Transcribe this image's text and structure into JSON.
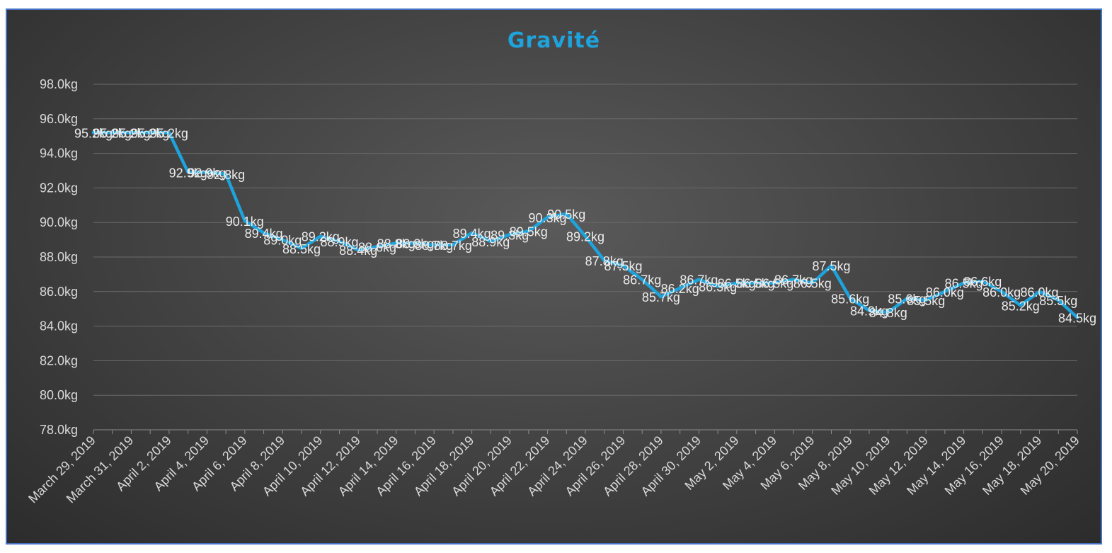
{
  "chart_data": {
    "type": "line",
    "title": "Gravité",
    "xlabel": "",
    "ylabel": "",
    "ylim": [
      78,
      98
    ],
    "y_step": 2,
    "y_tick_suffix": "kg",
    "grid": true,
    "legend": "none",
    "colors": {
      "line": "#1fa3dc",
      "title": "#1fa3dc",
      "grid": "#6a6a6a",
      "frame": "#4472c4"
    },
    "x_tick_labels": [
      "March 29, 2019",
      "March 31, 2019",
      "April 2, 2019",
      "April 4, 2019",
      "April 6, 2019",
      "April 8, 2019",
      "April 10, 2019",
      "April 12, 2019",
      "April 14, 2019",
      "April 16, 2019",
      "April 18, 2019",
      "April 20, 2019",
      "April 22, 2019",
      "April 24, 2019",
      "April 26, 2019",
      "April 28, 2019",
      "April 30, 2019",
      "May 2, 2019",
      "May 4, 2019",
      "May 6, 2019",
      "May 8, 2019",
      "May 10, 2019",
      "May 12, 2019",
      "May 14, 2019",
      "May 16, 2019",
      "May 18, 2019",
      "May 20, 2019"
    ],
    "series": [
      {
        "x": [
          "2019-03-29",
          "2019-03-30",
          "2019-03-31",
          "2019-04-01",
          "2019-04-02",
          "2019-04-03",
          "2019-04-04",
          "2019-04-05",
          "2019-04-06",
          "2019-04-07",
          "2019-04-08",
          "2019-04-09",
          "2019-04-10",
          "2019-04-11",
          "2019-04-12",
          "2019-04-13",
          "2019-04-14",
          "2019-04-15",
          "2019-04-16",
          "2019-04-17",
          "2019-04-18",
          "2019-04-19",
          "2019-04-20",
          "2019-04-21",
          "2019-04-22",
          "2019-04-23",
          "2019-04-24",
          "2019-04-25",
          "2019-04-26",
          "2019-04-27",
          "2019-04-28",
          "2019-04-29",
          "2019-04-30",
          "2019-05-01",
          "2019-05-02",
          "2019-05-03",
          "2019-05-04",
          "2019-05-05",
          "2019-05-06",
          "2019-05-07",
          "2019-05-08",
          "2019-05-09",
          "2019-05-10",
          "2019-05-11",
          "2019-05-12",
          "2019-05-13",
          "2019-05-14",
          "2019-05-15",
          "2019-05-16",
          "2019-05-17",
          "2019-05-18",
          "2019-05-19",
          "2019-05-20"
        ],
        "values": [
          95.2,
          95.2,
          95.2,
          95.2,
          95.2,
          92.9,
          92.9,
          92.8,
          90.1,
          89.4,
          89.0,
          88.5,
          89.2,
          88.9,
          88.4,
          88.6,
          88.8,
          88.8,
          88.7,
          88.7,
          89.4,
          88.9,
          89.3,
          89.5,
          90.3,
          90.5,
          89.2,
          87.8,
          87.5,
          86.7,
          85.7,
          86.2,
          86.7,
          86.3,
          86.5,
          86.5,
          86.5,
          86.7,
          86.5,
          87.5,
          85.6,
          84.9,
          84.8,
          85.6,
          85.5,
          86.0,
          86.5,
          86.6,
          86.0,
          85.2,
          86.0,
          85.5,
          84.5
        ]
      }
    ]
  }
}
